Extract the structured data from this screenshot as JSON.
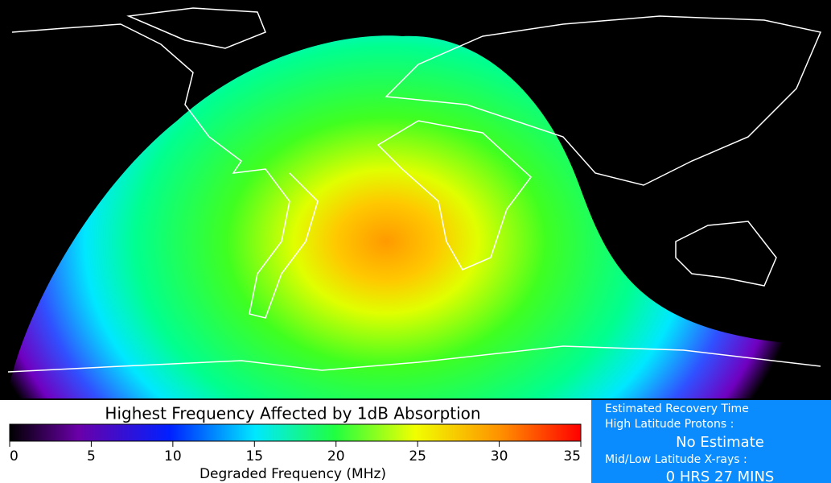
{
  "colorbar": {
    "title": "Highest Frequency Affected by 1dB Absorption",
    "label": "Degraded Frequency (MHz)",
    "lim": [
      0,
      35
    ],
    "ticks": [
      0,
      5,
      10,
      15,
      20,
      25,
      30,
      35
    ]
  },
  "recovery": {
    "title": "Estimated Recovery Time",
    "high_label": "High Latitude Protons :",
    "high_value": "No Estimate",
    "low_label": "Mid/Low Latitude X-rays :",
    "low_value": "0 HRS 27 MINS"
  }
}
